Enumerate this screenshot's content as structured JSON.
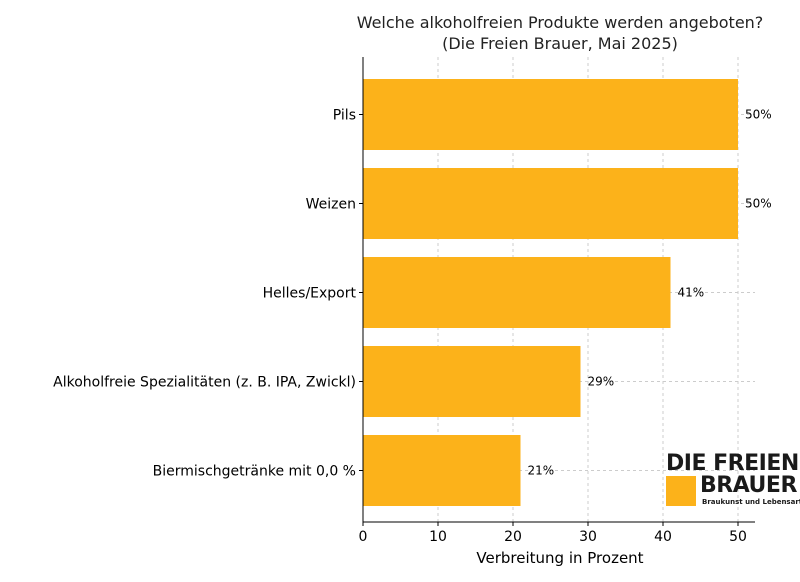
{
  "chart_data": {
    "type": "bar",
    "orientation": "horizontal",
    "title": "Welche alkoholfreien Produkte werden angeboten?",
    "subtitle": "(Die Freien Brauer, Mai 2025)",
    "xlabel": "Verbreitung in Prozent",
    "ylabel": "",
    "categories": [
      "Pils",
      "Weizen",
      "Helles/Export",
      "Alkoholfreie Spezialitäten (z. B. IPA, Zwickl)",
      "Biermischgetränke mit 0,0 %"
    ],
    "values": [
      50,
      50,
      41,
      29,
      21
    ],
    "data_labels": [
      "50%",
      "50%",
      "41%",
      "29%",
      "21%"
    ],
    "xlim": [
      0,
      52.5
    ],
    "xticks": [
      0,
      10,
      20,
      30,
      40,
      50
    ],
    "grid": true,
    "bar_color": "#fcb21a"
  },
  "logo": {
    "line1": "DIE FREIEN",
    "line2": "BRAUER",
    "tagline": "Braukunst und Lebensart",
    "accent_color": "#fcb21a"
  }
}
